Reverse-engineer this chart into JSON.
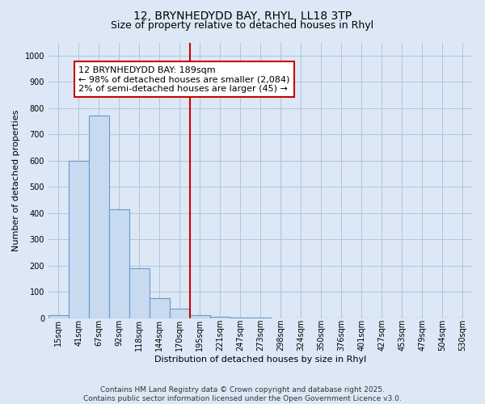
{
  "title_line1": "12, BRYNHEDYDD BAY, RHYL, LL18 3TP",
  "title_line2": "Size of property relative to detached houses in Rhyl",
  "xlabel": "Distribution of detached houses by size in Rhyl",
  "ylabel": "Number of detached properties",
  "bar_color": "#c8daf0",
  "bar_edge_color": "#6699cc",
  "background_color": "#dce8f5",
  "plot_bg_color": "#dce8f5",
  "grid_color": "#b0c4de",
  "categories": [
    "15sqm",
    "41sqm",
    "67sqm",
    "92sqm",
    "118sqm",
    "144sqm",
    "170sqm",
    "195sqm",
    "221sqm",
    "247sqm",
    "273sqm",
    "298sqm",
    "324sqm",
    "350sqm",
    "376sqm",
    "401sqm",
    "427sqm",
    "453sqm",
    "479sqm",
    "504sqm",
    "530sqm"
  ],
  "values": [
    10,
    600,
    770,
    415,
    190,
    75,
    35,
    10,
    5,
    2,
    1,
    0,
    0,
    0,
    0,
    0,
    0,
    0,
    0,
    0,
    0
  ],
  "ylim": [
    0,
    1050
  ],
  "yticks": [
    0,
    100,
    200,
    300,
    400,
    500,
    600,
    700,
    800,
    900,
    1000
  ],
  "vline_index": 6.5,
  "vline_color": "#cc0000",
  "annotation_text": "12 BRYNHEDYDD BAY: 189sqm\n← 98% of detached houses are smaller (2,084)\n2% of semi-detached houses are larger (45) →",
  "footer_line1": "Contains HM Land Registry data © Crown copyright and database right 2025.",
  "footer_line2": "Contains public sector information licensed under the Open Government Licence v3.0.",
  "title_fontsize": 10,
  "subtitle_fontsize": 9,
  "tick_fontsize": 7,
  "label_fontsize": 8,
  "annotation_fontsize": 8,
  "footer_fontsize": 6.5
}
